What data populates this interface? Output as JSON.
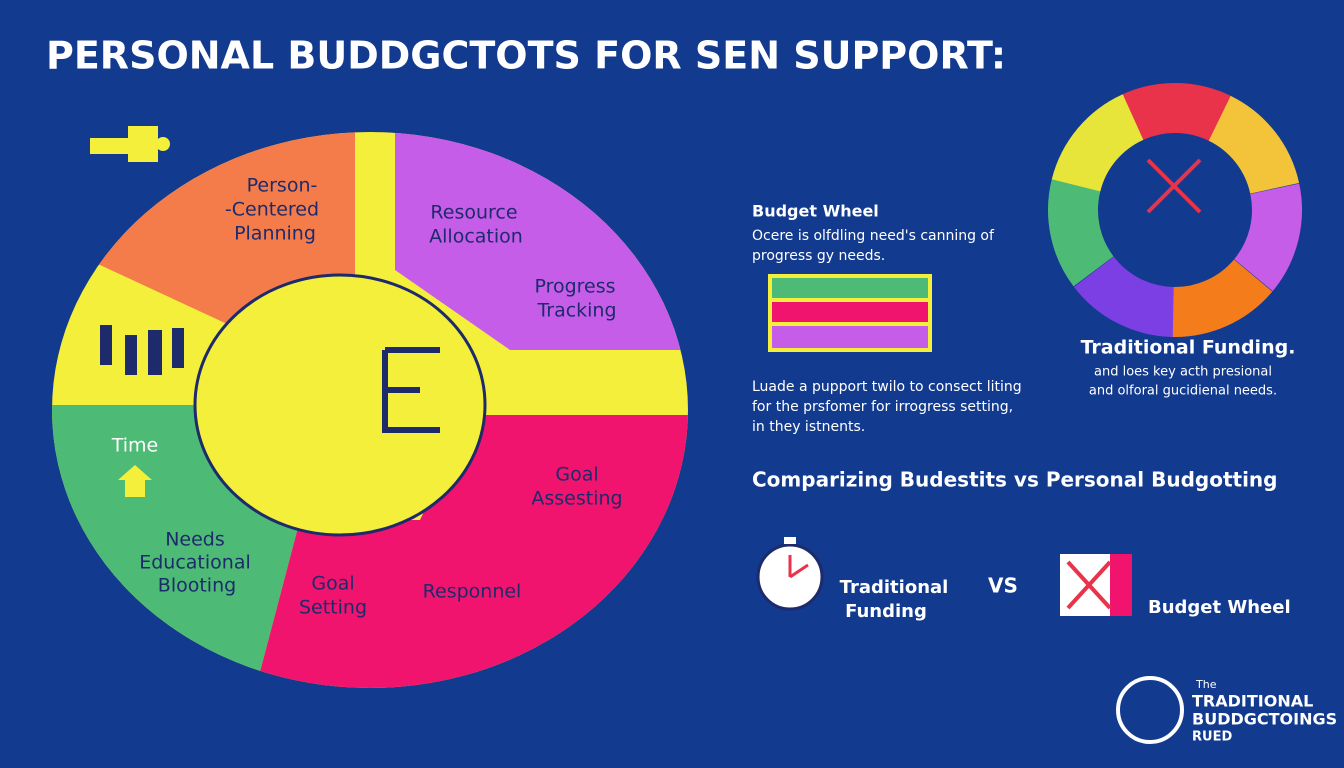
{
  "header": {
    "title": "PERSONAL BUDDGCTOTS FOR SEN SUPPORT:"
  },
  "wheel": {
    "segments": [
      {
        "lines": [
          "Person-",
          "-Centered",
          "Planning"
        ]
      },
      {
        "lines": [
          "Resource",
          "Allocation"
        ]
      },
      {
        "lines": [
          "Progress",
          "Tracking"
        ]
      },
      {
        "lines": [
          "Time"
        ]
      },
      {
        "lines": [
          "Needs",
          "Educational",
          "Blooting"
        ]
      },
      {
        "lines": [
          "Goal",
          "Setting"
        ]
      },
      {
        "lines": [
          "Responnel"
        ]
      },
      {
        "lines": [
          "Goal",
          "Assesting"
        ]
      }
    ]
  },
  "budget_wheel": {
    "title": "Budget Wheel",
    "lines": [
      "Ocere is olfdling need's canning of",
      "progress gy needs."
    ]
  },
  "paragraph": {
    "lines": [
      "Luade a pupport twilo to consect liting",
      "for the prsfomer for irrogress setting,",
      "in they istnents."
    ]
  },
  "traditional": {
    "title": "Traditional Funding.",
    "lines": [
      "and loes key acth presional",
      "and olforal gucidienal needs."
    ]
  },
  "comparison": {
    "title": "Comparizing Budestits vs Personal Budgotting",
    "left": [
      "Traditional",
      "Funding"
    ],
    "vs": "VS",
    "right": "Budget Wheel"
  },
  "logo": {
    "lines": [
      "The",
      "TRADITIONAL",
      "BUDDGCTOINGS",
      "RUED"
    ]
  }
}
